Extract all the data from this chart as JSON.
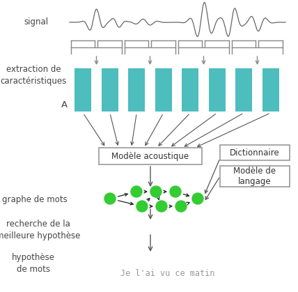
{
  "bg_color": "#ffffff",
  "signal_label": "signal",
  "extraction_label": "extraction de\ncaractéristiques",
  "A_label": "A",
  "bar_color": "#4dbdbd",
  "num_bars": 8,
  "acoustic_box_label": "Modèle acoustique",
  "dictionnaire_label": "Dictionnaire",
  "modele_langage_label": "Modèle de\nlangage",
  "graphe_label": "graphe de mots",
  "recherche_label": "recherche de la\nmeilleure hypothèse",
  "hypothese_label": "hypothèse\nde mots",
  "output_text": "Je l'ai vu ce matin",
  "node_color": "#33cc33",
  "text_color": "#444444",
  "box_edge_color": "#999999",
  "font_size": 8.5,
  "fig_width": 4.28,
  "fig_height": 4.19,
  "dpi": 100
}
